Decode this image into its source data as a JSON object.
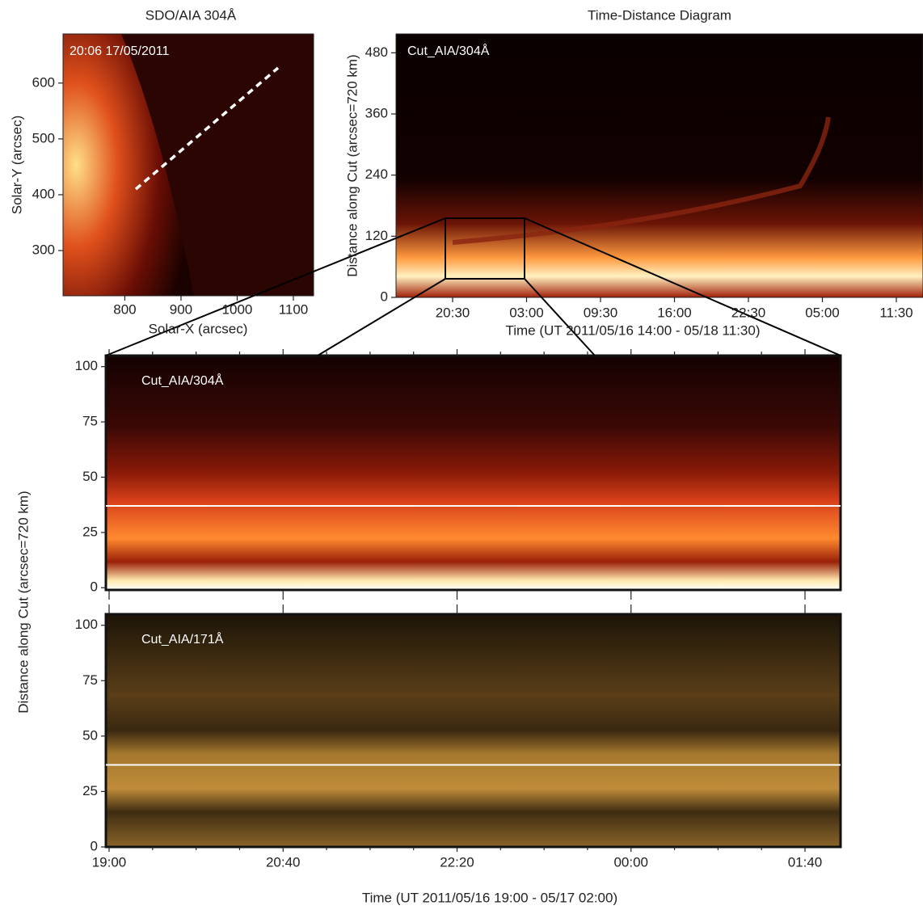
{
  "chart_data": [
    {
      "type": "image",
      "title": "SDO/AIA 304Å",
      "annotation": "20:06 17/05/2011",
      "xlabel": "Solar-X (arcsec)",
      "ylabel": "Solar-Y (arcsec)",
      "xlim": [
        690,
        1136
      ],
      "xticks": [
        800,
        900,
        1000,
        1100
      ],
      "ylim": [
        219,
        688
      ],
      "yticks": [
        300,
        400,
        500,
        600
      ]
    },
    {
      "type": "image",
      "title": "Time-Distance Diagram",
      "annotation": "Cut_AIA/304Å",
      "xlabel": "Time (UT 2011/05/16 14:00 - 05/18 11:30)",
      "ylabel": "Distance along Cut (arcsec=720 km)",
      "xtick_labels": [
        "20:30",
        "03:00",
        "09:30",
        "16:00",
        "22:30",
        "05:00",
        "11:30"
      ],
      "ylim": [
        0,
        517
      ],
      "yticks": [
        0,
        120,
        240,
        360,
        480
      ]
    },
    {
      "type": "image",
      "annotation": "Cut_AIA/304Å",
      "ylim": [
        -1,
        105
      ],
      "yticks": [
        0,
        25,
        50,
        75,
        100
      ],
      "hline": 37
    },
    {
      "type": "image",
      "annotation": "Cut_AIA/171Å",
      "xlabel": "Time (UT 2011/05/16 19:00 - 05/17 02:00)",
      "ylabel": "Distance along Cut (arcsec=720 km)",
      "xtick_labels": [
        "19:00",
        "20:40",
        "22:20",
        "00:00",
        "01:40"
      ],
      "ylim": [
        0,
        105
      ],
      "yticks": [
        0,
        25,
        50,
        75,
        100
      ],
      "hline": 37
    }
  ]
}
